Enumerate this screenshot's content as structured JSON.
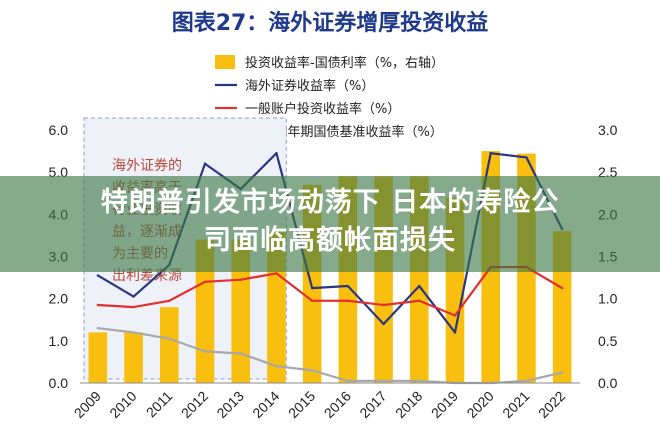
{
  "chart_data": {
    "type": "bar+line",
    "title": "图表27：海外证券增厚投资收益",
    "categories": [
      "2009",
      "2010",
      "2011",
      "2012",
      "2013",
      "2014",
      "2015",
      "2016",
      "2017",
      "2018",
      "2019",
      "2020",
      "2021",
      "2022"
    ],
    "left_axis": {
      "min": 0,
      "max": 6,
      "ticks": [
        "0.0",
        "1.0",
        "2.0",
        "3.0",
        "4.0",
        "5.0",
        "6.0"
      ]
    },
    "right_axis": {
      "min": 0,
      "max": 3,
      "ticks": [
        "0.0",
        "0.5",
        "1.0",
        "1.5",
        "2.0",
        "2.5",
        "3.0"
      ]
    },
    "series": [
      {
        "name": "投资收益率-国债利率（%，右轴）",
        "type": "bar",
        "axis": "right",
        "color": "#f9bf0f",
        "values": [
          0.6,
          0.6,
          0.9,
          1.7,
          1.7,
          1.8,
          2.35,
          2.45,
          2.45,
          2.45,
          2.2,
          2.75,
          2.72,
          1.8
        ]
      },
      {
        "name": "海外证券收益率（%）",
        "type": "line",
        "axis": "left",
        "color": "#2b3580",
        "values": [
          2.55,
          2.05,
          2.8,
          5.2,
          4.6,
          5.45,
          2.25,
          2.3,
          1.4,
          2.3,
          1.2,
          5.45,
          5.35,
          3.65
        ]
      },
      {
        "name": "一般账户投资收益率（%）",
        "type": "line",
        "axis": "left",
        "color": "#e03030",
        "values": [
          1.85,
          1.8,
          1.95,
          2.4,
          2.45,
          2.6,
          1.95,
          1.95,
          1.85,
          1.95,
          1.6,
          2.75,
          2.75,
          2.25
        ]
      },
      {
        "name": "日本10年期国债基准收益率（%）",
        "type": "line",
        "axis": "left",
        "color": "#a8a8a8",
        "values": [
          1.3,
          1.2,
          1.05,
          0.75,
          0.7,
          0.4,
          0.3,
          0.05,
          0.05,
          0.05,
          0.0,
          0.0,
          0.05,
          0.25
        ]
      }
    ],
    "annotation": [
      "海外证券的",
      "收益率高于",
      "行业投资收",
      "益，逐渐成",
      "为主要的",
      "出利差来源"
    ],
    "colors": {
      "title": "#1f3a8a",
      "axis": "#222222",
      "annotation_box": "#8aa0c8",
      "annotation_text": "#b84a3a"
    }
  },
  "overlay": {
    "headline_line1": "特朗普引发市场动荡下 日本的寿险公",
    "headline_line2": "司面临高额帐面损失"
  }
}
